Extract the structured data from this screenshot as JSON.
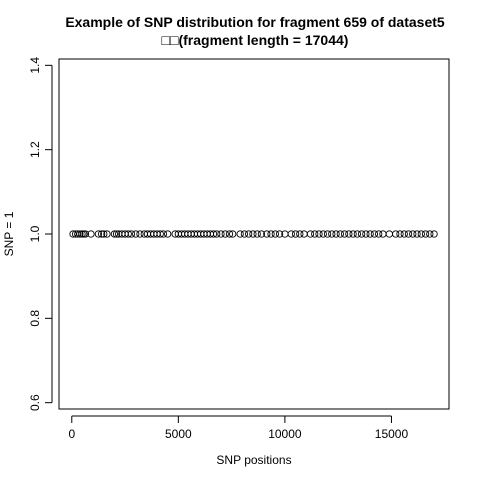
{
  "chart_data": {
    "type": "scatter",
    "title": "Example of SNP distribution for fragment 659 of dataset5",
    "subtitle": "□□(fragment length = 17044)",
    "xlabel": "SNP positions",
    "ylabel": "SNP = 1",
    "xlim": [
      -600,
      17700
    ],
    "ylim": [
      0.585,
      1.415
    ],
    "x_ticks": [
      0,
      5000,
      10000,
      15000
    ],
    "x_tick_labels": [
      "0",
      "5000",
      "10000",
      "15000"
    ],
    "y_ticks": [
      0.6,
      0.8,
      1.0,
      1.2,
      1.4
    ],
    "y_tick_labels": [
      "0.6",
      "0.8",
      "1.0",
      "1.2",
      "1.4"
    ],
    "grid": false,
    "marker": "open-circle",
    "series": [
      {
        "x": [
          60,
          180,
          280,
          380,
          480,
          560,
          640,
          900,
          1250,
          1400,
          1500,
          1650,
          2000,
          2100,
          2200,
          2350,
          2500,
          2650,
          2800,
          3000,
          3200,
          3400,
          3550,
          3700,
          3850,
          4000,
          4150,
          4300,
          4500,
          4850,
          5000,
          5150,
          5300,
          5450,
          5600,
          5750,
          5900,
          6050,
          6200,
          6350,
          6500,
          6650,
          6800,
          7000,
          7200,
          7400,
          7550,
          7900,
          8100,
          8300,
          8500,
          8700,
          8900,
          9150,
          9350,
          9550,
          9750,
          10000,
          10300,
          10500,
          10700,
          10900,
          11200,
          11400,
          11600,
          11800,
          12000,
          12200,
          12400,
          12600,
          12800,
          13000,
          13200,
          13400,
          13600,
          13800,
          14000,
          14200,
          14400,
          14600,
          14900,
          15200,
          15400,
          15600,
          15800,
          16000,
          16200,
          16400,
          16600,
          16800,
          17000
        ],
        "y": [
          1,
          1,
          1,
          1,
          1,
          1,
          1,
          1,
          1,
          1,
          1,
          1,
          1,
          1,
          1,
          1,
          1,
          1,
          1,
          1,
          1,
          1,
          1,
          1,
          1,
          1,
          1,
          1,
          1,
          1,
          1,
          1,
          1,
          1,
          1,
          1,
          1,
          1,
          1,
          1,
          1,
          1,
          1,
          1,
          1,
          1,
          1,
          1,
          1,
          1,
          1,
          1,
          1,
          1,
          1,
          1,
          1,
          1,
          1,
          1,
          1,
          1,
          1,
          1,
          1,
          1,
          1,
          1,
          1,
          1,
          1,
          1,
          1,
          1,
          1,
          1,
          1,
          1,
          1,
          1,
          1,
          1,
          1,
          1,
          1,
          1,
          1,
          1,
          1,
          1,
          1
        ]
      }
    ]
  }
}
